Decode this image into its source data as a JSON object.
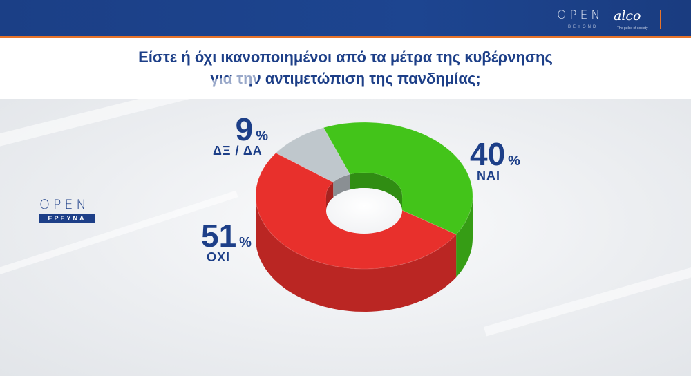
{
  "header": {
    "brand_open": "OPEN",
    "brand_beyond": "BEYOND",
    "brand_alco": "alco",
    "brand_alco_tag": "The pulse of society"
  },
  "title_line1": "Είστε ή όχι ικανοποιημένοι από τα μέτρα της κυβέρνησης",
  "title_line2": "για την αντιμετώπιση της πανδημίας;",
  "side_logo": {
    "top": "OPEN",
    "bottom": "ΕΡΕΥΝΑ"
  },
  "colors": {
    "nai": "#43c41a",
    "oxi": "#e8302c",
    "dk": "#bfc7cc",
    "text": "#1d3f88"
  },
  "chart_data": {
    "type": "pie",
    "style": "3d-donut",
    "title": "Είστε ή όχι ικανοποιημένοι από τα μέτρα της κυβέρνησης για την αντιμετώπιση της πανδημίας;",
    "slices": [
      {
        "label": "ΝΑΙ",
        "value": 40,
        "display": "40",
        "unit": "%"
      },
      {
        "label": "ΟΧΙ",
        "value": 51,
        "display": "51",
        "unit": "%"
      },
      {
        "label": "ΔΞ / ΔΑ",
        "value": 9,
        "display": "9",
        "unit": "%"
      }
    ]
  }
}
